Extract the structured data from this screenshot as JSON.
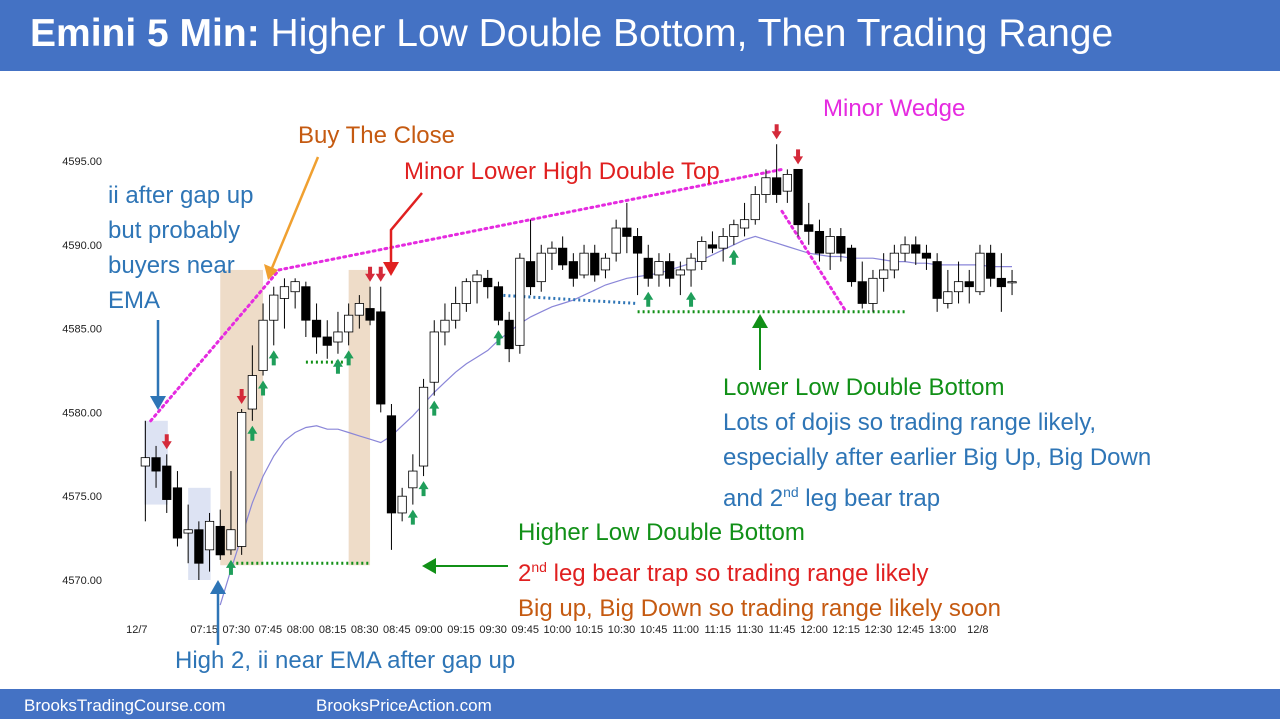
{
  "header": {
    "title_bold": "Emini 5 Min:",
    "title_rest": "Higher Low Double Bottom, Then Trading Range"
  },
  "footer": {
    "left": "BrooksTradingCourse.com",
    "right": "BrooksPriceAction.com"
  },
  "annotations": {
    "gap_up": [
      "ii after gap up",
      "but probably",
      "buyers near",
      "EMA"
    ],
    "buy_close": "Buy The Close",
    "lower_high_dt": "Minor Lower High Double Top",
    "minor_wedge": "Minor Wedge",
    "high2": "High 2, ii near EMA after gap up",
    "lldb_title": "Lower Low Double Bottom",
    "lldb_lines": [
      "Lots of dojis so trading range likely,",
      "especially after earlier Big Up, Big Down"
    ],
    "lldb_last_pre": "and 2",
    "lldb_last_sup": "nd",
    "lldb_last_post": " leg bear trap",
    "hldb_title": "Higher Low Double Bottom",
    "hldb_bear_sup": "nd",
    "hldb_bear_post": " leg bear trap so trading range likely",
    "hldb_bear_pre": "2",
    "hldb_bigup": "Big up, Big Down so trading range likely soon"
  },
  "colors": {
    "header_bg": "#4472c4",
    "bull_arrow": "#1f9e5a",
    "bear_arrow": "#d42a3a",
    "ema": "#8a86d8",
    "wedge_line": "#e52be0",
    "green_dotted": "#119017",
    "blue_dotted": "#2e75b6",
    "tan_highlight": "#eedcc8",
    "blue_highlight": "#dde3f3"
  },
  "chart_data": {
    "type": "candlestick",
    "y_ticks": [
      "4595.00",
      "4590.00",
      "4585.00",
      "4580.00",
      "4575.00",
      "4570.00"
    ],
    "y_tick_values": [
      4595,
      4590,
      4585,
      4580,
      4575,
      4570
    ],
    "ylim": [
      4567.4,
      4598.6
    ],
    "x_ticks": [
      "12/7",
      "07:15",
      "07:30",
      "07:45",
      "08:00",
      "08:15",
      "08:30",
      "08:45",
      "09:00",
      "09:15",
      "09:30",
      "09:45",
      "10:00",
      "10:15",
      "10:30",
      "10:45",
      "11:00",
      "11:15",
      "11:30",
      "11:45",
      "12:00",
      "12:15",
      "12:30",
      "12:45",
      "13:00",
      "12/8"
    ],
    "x_tick_bars": [
      -0.3,
      6,
      9,
      12,
      15,
      18,
      21,
      24,
      27,
      30,
      33,
      36,
      39,
      42,
      45,
      48,
      51,
      54,
      57,
      60,
      63,
      66,
      69,
      72,
      75,
      78.3
    ],
    "bars": [
      [
        4576.8,
        4579.5,
        4573.5,
        4577.3
      ],
      [
        4577.3,
        4578.0,
        4575.5,
        4576.5
      ],
      [
        4576.8,
        4577.5,
        4574.0,
        4574.8
      ],
      [
        4575.5,
        4576.5,
        4572.0,
        4572.5
      ],
      [
        4572.8,
        4574.5,
        4571.0,
        4573.0
      ],
      [
        4573.0,
        4573.5,
        4570.0,
        4571.0
      ],
      [
        4571.8,
        4574.0,
        4570.5,
        4573.5
      ],
      [
        4573.2,
        4574.2,
        4571.2,
        4571.5
      ],
      [
        4571.8,
        4576.5,
        4571.5,
        4573.0
      ],
      [
        4572.0,
        4580.2,
        4571.5,
        4580.0
      ],
      [
        4580.2,
        4584.0,
        4579.5,
        4582.2
      ],
      [
        4582.5,
        4586.5,
        4582.2,
        4585.5
      ],
      [
        4585.5,
        4587.5,
        4584.0,
        4587.0
      ],
      [
        4586.8,
        4588.0,
        4585.0,
        4587.5
      ],
      [
        4587.2,
        4588.0,
        4586.2,
        4587.8
      ],
      [
        4587.5,
        4587.8,
        4584.5,
        4585.5
      ],
      [
        4585.5,
        4586.5,
        4583.5,
        4584.5
      ],
      [
        4584.5,
        4585.5,
        4583.2,
        4584.0
      ],
      [
        4584.2,
        4586.0,
        4583.5,
        4584.8
      ],
      [
        4584.8,
        4586.5,
        4584.0,
        4585.8
      ],
      [
        4585.8,
        4587.0,
        4585.0,
        4586.5
      ],
      [
        4586.2,
        4587.5,
        4585.2,
        4585.5
      ],
      [
        4586.0,
        4587.5,
        4580.0,
        4580.5
      ],
      [
        4579.8,
        4580.5,
        4571.8,
        4574.0
      ],
      [
        4574.0,
        4575.5,
        4573.5,
        4575.0
      ],
      [
        4575.5,
        4577.5,
        4574.5,
        4576.5
      ],
      [
        4576.8,
        4582.0,
        4576.2,
        4581.5
      ],
      [
        4581.8,
        4585.5,
        4581.0,
        4584.8
      ],
      [
        4584.8,
        4586.5,
        4584.0,
        4585.5
      ],
      [
        4585.5,
        4587.5,
        4585.0,
        4586.5
      ],
      [
        4586.5,
        4588.0,
        4586.0,
        4587.8
      ],
      [
        4587.8,
        4588.5,
        4586.5,
        4588.2
      ],
      [
        4588.0,
        4588.5,
        4586.8,
        4587.5
      ],
      [
        4587.5,
        4587.8,
        4585.2,
        4585.5
      ],
      [
        4585.5,
        4586.0,
        4583.0,
        4583.8
      ],
      [
        4584.0,
        4589.5,
        4583.5,
        4589.2
      ],
      [
        4589.0,
        4591.5,
        4587.0,
        4587.5
      ],
      [
        4587.8,
        4590.0,
        4587.2,
        4589.5
      ],
      [
        4589.5,
        4590.2,
        4588.5,
        4589.8
      ],
      [
        4589.8,
        4590.5,
        4588.5,
        4588.8
      ],
      [
        4589.0,
        4589.5,
        4587.5,
        4588.0
      ],
      [
        4588.2,
        4590.0,
        4588.0,
        4589.5
      ],
      [
        4589.5,
        4590.0,
        4587.8,
        4588.2
      ],
      [
        4588.5,
        4589.5,
        4588.0,
        4589.2
      ],
      [
        4589.5,
        4591.5,
        4589.0,
        4591.0
      ],
      [
        4591.0,
        4592.5,
        4589.5,
        4590.5
      ],
      [
        4590.5,
        4591.0,
        4587.0,
        4589.5
      ],
      [
        4589.2,
        4590.0,
        4587.5,
        4588.0
      ],
      [
        4588.2,
        4589.5,
        4587.5,
        4589.0
      ],
      [
        4589.0,
        4589.5,
        4587.5,
        4588.0
      ],
      [
        4588.2,
        4589.0,
        4587.0,
        4588.5
      ],
      [
        4588.5,
        4589.5,
        4587.5,
        4589.2
      ],
      [
        4589.0,
        4590.5,
        4588.5,
        4590.2
      ],
      [
        4590.0,
        4590.8,
        4589.5,
        4589.8
      ],
      [
        4589.8,
        4591.0,
        4589.0,
        4590.5
      ],
      [
        4590.5,
        4591.5,
        4590.0,
        4591.2
      ],
      [
        4591.0,
        4592.5,
        4590.5,
        4591.5
      ],
      [
        4591.5,
        4593.5,
        4591.2,
        4593.0
      ],
      [
        4593.0,
        4594.5,
        4592.5,
        4594.0
      ],
      [
        4594.0,
        4596.0,
        4592.5,
        4593.0
      ],
      [
        4593.2,
        4594.5,
        4592.5,
        4594.2
      ],
      [
        4594.5,
        4594.5,
        4590.5,
        4591.2
      ],
      [
        4591.2,
        4592.5,
        4590.0,
        4590.8
      ],
      [
        4590.8,
        4591.5,
        4589.0,
        4589.5
      ],
      [
        4589.5,
        4591.0,
        4588.5,
        4590.5
      ],
      [
        4590.5,
        4591.0,
        4589.0,
        4589.5
      ],
      [
        4589.8,
        4590.0,
        4587.5,
        4587.8
      ],
      [
        4587.8,
        4589.0,
        4586.2,
        4586.5
      ],
      [
        4586.5,
        4588.5,
        4586.0,
        4588.0
      ],
      [
        4588.0,
        4589.5,
        4587.2,
        4588.5
      ],
      [
        4588.5,
        4590.0,
        4588.0,
        4589.5
      ],
      [
        4589.5,
        4590.5,
        4589.0,
        4590.0
      ],
      [
        4590.0,
        4590.5,
        4588.8,
        4589.5
      ],
      [
        4589.5,
        4590.0,
        4588.5,
        4589.2
      ],
      [
        4589.0,
        4589.5,
        4586.0,
        4586.8
      ],
      [
        4586.5,
        4588.5,
        4586.2,
        4587.2
      ],
      [
        4587.2,
        4589.0,
        4586.5,
        4587.8
      ],
      [
        4587.8,
        4588.5,
        4586.5,
        4587.5
      ],
      [
        4587.2,
        4590.0,
        4587.0,
        4589.5
      ],
      [
        4589.5,
        4590.0,
        4587.5,
        4588.0
      ],
      [
        4588.0,
        4589.5,
        4586.0,
        4587.5
      ],
      [
        4587.8,
        4588.5,
        4587.0,
        4587.8
      ]
    ],
    "ema_start_bar": 7,
    "ema": [
      4568.5,
      4570.6,
      4572.6,
      4574.6,
      4576.2,
      4577.4,
      4578.3,
      4578.8,
      4579.1,
      4579.2,
      4579.0,
      4579.0,
      4578.8,
      4578.6,
      4578.4,
      4578.2,
      4578.6,
      4579.2,
      4579.8,
      4580.5,
      4581.2,
      4581.8,
      4582.4,
      4582.9,
      4583.3,
      4583.7,
      4584.3,
      4584.8,
      4585.3,
      4585.7,
      4586.0,
      4586.3,
      4586.5,
      4586.7,
      4587.0,
      4587.3,
      4587.6,
      4587.8,
      4588.0,
      4588.1,
      4588.2,
      4588.3,
      4588.5,
      4588.7,
      4588.9,
      4589.1,
      4589.4,
      4589.7,
      4590.0,
      4590.3,
      4590.5,
      4590.3,
      4590.1,
      4589.9,
      4589.7,
      4589.5,
      4589.4,
      4589.3,
      4589.3,
      4589.2,
      4589.2,
      4589.2,
      4589.1,
      4589.0,
      4589.0,
      4588.9,
      4588.9,
      4588.8,
      4588.8,
      4588.8,
      4588.8,
      4588.8,
      4588.7,
      4588.7,
      4588.7
    ],
    "bull_arrows": [
      8,
      10,
      11,
      12,
      18,
      19,
      25,
      26,
      27,
      33,
      47,
      51,
      55
    ],
    "bear_arrows": [
      2,
      9,
      21,
      22,
      59,
      61
    ],
    "wedge_path": [
      [
        0.5,
        4579.5
      ],
      [
        12.5,
        4588.5
      ],
      [
        59.5,
        4594.5
      ]
    ],
    "wedge_down": [
      [
        59.5,
        4592.0
      ],
      [
        65.5,
        4586.0
      ]
    ],
    "green_dotted_lines": [
      [
        [
          8.5,
          4571.0
        ],
        [
          21.0,
          4571.0
        ]
      ],
      [
        [
          15.0,
          4583.0
        ],
        [
          18.5,
          4583.0
        ]
      ],
      [
        [
          46.0,
          4586.0
        ],
        [
          71.0,
          4586.0
        ]
      ]
    ],
    "blue_dotted_lines": [
      [
        [
          33.0,
          4587.0
        ],
        [
          46.0,
          4586.5
        ]
      ]
    ],
    "tan_highlights": [
      [
        7.5,
        11.5
      ],
      [
        19.5,
        21.5
      ]
    ],
    "blue_highlights": [
      [
        0.4,
        2.6
      ],
      [
        4.5,
        6.6
      ]
    ]
  }
}
